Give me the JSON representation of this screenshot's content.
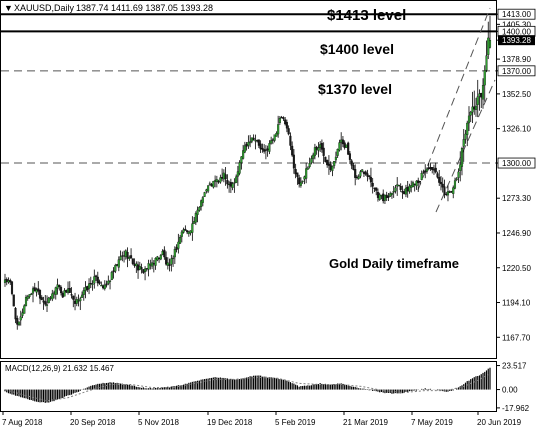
{
  "header": {
    "symbol_label": "XAUUSD,Daily",
    "ohlc_label": "1387.74 1411.69 1387.05 1393.28"
  },
  "annotations": {
    "level_1413": "$1413 level",
    "level_1400": "$1400 level",
    "level_1370": "$1370 level",
    "timeframe": "Gold Daily timeframe"
  },
  "colors": {
    "background": "#ffffff",
    "candle": "#000000",
    "bull_body": "#2f9e2f",
    "bear_body": "#1a1a1a",
    "level_line": "#000000",
    "dashed_line": "#555555",
    "macd_hist": "#000000",
    "signal_line": "#808080",
    "current_price_box": "#000000"
  },
  "chart_data": [
    {
      "type": "candlestick",
      "title": "XAUUSD,Daily",
      "subtitle": "1387.74 1411.69 1387.05 1393.28",
      "x": [
        "7 Aug 2018",
        "20 Sep 2018",
        "5 Nov 2018",
        "19 Dec 2018",
        "5 Feb 2019",
        "21 Mar 2019",
        "7 May 2019",
        "20 Jun 2019"
      ],
      "y_ticks": [
        1413.0,
        1405.3,
        1400.0,
        1393.28,
        1378.9,
        1370.0,
        1352.5,
        1326.1,
        1300.0,
        1273.3,
        1246.9,
        1220.5,
        1194.1,
        1167.7
      ],
      "ylim": [
        1153.5,
        1421.5
      ],
      "horizontal_levels": [
        {
          "value": 1413.0,
          "style": "solid",
          "label": "$1413 level"
        },
        {
          "value": 1400.0,
          "style": "solid",
          "label": "$1400 level"
        },
        {
          "value": 1370.0,
          "style": "dashed",
          "label": "$1370 level"
        },
        {
          "value": 1300.0,
          "style": "dashed"
        }
      ],
      "current_price": 1393.28,
      "close_path": [
        [
          0,
          1212
        ],
        [
          3,
          1208
        ],
        [
          5,
          1192
        ],
        [
          7,
          1175
        ],
        [
          9,
          1182
        ],
        [
          12,
          1198
        ],
        [
          15,
          1202
        ],
        [
          18,
          1205
        ],
        [
          21,
          1197
        ],
        [
          24,
          1193
        ],
        [
          27,
          1200
        ],
        [
          30,
          1208
        ],
        [
          33,
          1200
        ],
        [
          36,
          1205
        ],
        [
          38,
          1198
        ],
        [
          40,
          1192
        ],
        [
          42,
          1197
        ],
        [
          45,
          1202
        ],
        [
          48,
          1207
        ],
        [
          51,
          1212
        ],
        [
          54,
          1210
        ],
        [
          57,
          1205
        ],
        [
          60,
          1212
        ],
        [
          63,
          1220
        ],
        [
          66,
          1228
        ],
        [
          69,
          1232
        ],
        [
          72,
          1226
        ],
        [
          75,
          1222
        ],
        [
          78,
          1218
        ],
        [
          81,
          1220
        ],
        [
          84,
          1224
        ],
        [
          87,
          1228
        ],
        [
          90,
          1232
        ],
        [
          92,
          1224
        ],
        [
          94,
          1220
        ],
        [
          96,
          1230
        ],
        [
          98,
          1236
        ],
        [
          100,
          1244
        ],
        [
          102,
          1250
        ],
        [
          104,
          1247
        ],
        [
          107,
          1253
        ],
        [
          110,
          1263
        ],
        [
          113,
          1276
        ],
        [
          116,
          1282
        ],
        [
          119,
          1285
        ],
        [
          122,
          1287
        ],
        [
          125,
          1290
        ],
        [
          128,
          1284
        ],
        [
          131,
          1286
        ],
        [
          133,
          1294
        ],
        [
          136,
          1310
        ],
        [
          139,
          1317
        ],
        [
          142,
          1320
        ],
        [
          145,
          1313
        ],
        [
          148,
          1307
        ],
        [
          151,
          1314
        ],
        [
          154,
          1320
        ],
        [
          157,
          1335
        ],
        [
          160,
          1330
        ],
        [
          162,
          1320
        ],
        [
          164,
          1305
        ],
        [
          166,
          1292
        ],
        [
          168,
          1285
        ],
        [
          171,
          1290
        ],
        [
          174,
          1300
        ],
        [
          177,
          1311
        ],
        [
          180,
          1313
        ],
        [
          183,
          1303
        ],
        [
          186,
          1297
        ],
        [
          189,
          1306
        ],
        [
          192,
          1318
        ],
        [
          195,
          1312
        ],
        [
          198,
          1296
        ],
        [
          201,
          1288
        ],
        [
          204,
          1295
        ],
        [
          207,
          1292
        ],
        [
          210,
          1284
        ],
        [
          213,
          1276
        ],
        [
          216,
          1273
        ],
        [
          219,
          1275
        ],
        [
          222,
          1281
        ],
        [
          225,
          1284
        ],
        [
          228,
          1277
        ],
        [
          231,
          1282
        ],
        [
          234,
          1286
        ],
        [
          237,
          1288
        ],
        [
          240,
          1294
        ],
        [
          243,
          1297
        ],
        [
          246,
          1291
        ],
        [
          249,
          1282
        ],
        [
          252,
          1276
        ],
        [
          255,
          1280
        ],
        [
          258,
          1287
        ],
        [
          260,
          1300
        ],
        [
          262,
          1318
        ],
        [
          264,
          1331
        ],
        [
          266,
          1340
        ],
        [
          268,
          1342
        ],
        [
          270,
          1349
        ],
        [
          272,
          1352
        ],
        [
          273,
          1360
        ],
        [
          274,
          1369
        ],
        [
          275,
          1381
        ],
        [
          276,
          1395
        ],
        [
          277,
          1393.28
        ]
      ],
      "candle_count": 278,
      "first_bar_x_label_index": 0
    },
    {
      "type": "histogram",
      "title": "MACD(12,26,9) 21.632 15.467",
      "indicator": "MACD(12,26,9)",
      "values_label": "21.632 15.467",
      "macd_value": 21.632,
      "signal_value": 15.467,
      "y_ticks": [
        23.517,
        0.0,
        -17.962
      ],
      "ylim": [
        -21.0,
        27.0
      ],
      "macd_path": [
        [
          0,
          -2
        ],
        [
          6,
          -6
        ],
        [
          12,
          -9
        ],
        [
          18,
          -12
        ],
        [
          24,
          -13
        ],
        [
          30,
          -10
        ],
        [
          36,
          -6
        ],
        [
          42,
          -2
        ],
        [
          48,
          3
        ],
        [
          54,
          6
        ],
        [
          60,
          7
        ],
        [
          66,
          6
        ],
        [
          72,
          4
        ],
        [
          78,
          2
        ],
        [
          84,
          1
        ],
        [
          90,
          2
        ],
        [
          96,
          3
        ],
        [
          102,
          5
        ],
        [
          108,
          8
        ],
        [
          114,
          10
        ],
        [
          120,
          12
        ],
        [
          126,
          11
        ],
        [
          132,
          10
        ],
        [
          138,
          12
        ],
        [
          144,
          14
        ],
        [
          150,
          12
        ],
        [
          156,
          11
        ],
        [
          162,
          8
        ],
        [
          168,
          3
        ],
        [
          174,
          4
        ],
        [
          180,
          6
        ],
        [
          186,
          5
        ],
        [
          192,
          6
        ],
        [
          198,
          3
        ],
        [
          204,
          1
        ],
        [
          210,
          -1
        ],
        [
          216,
          -3
        ],
        [
          222,
          -4
        ],
        [
          228,
          -3
        ],
        [
          234,
          -1
        ],
        [
          240,
          1
        ],
        [
          246,
          0
        ],
        [
          252,
          -2
        ],
        [
          256,
          -1
        ],
        [
          260,
          3
        ],
        [
          264,
          8
        ],
        [
          268,
          12
        ],
        [
          272,
          15
        ],
        [
          275,
          19
        ],
        [
          277,
          21.632
        ]
      ],
      "signal_path": [
        [
          0,
          0
        ],
        [
          12,
          -6
        ],
        [
          24,
          -11
        ],
        [
          36,
          -8
        ],
        [
          48,
          -1
        ],
        [
          60,
          5
        ],
        [
          72,
          5
        ],
        [
          84,
          2
        ],
        [
          96,
          2
        ],
        [
          108,
          6
        ],
        [
          120,
          10
        ],
        [
          132,
          10
        ],
        [
          144,
          12
        ],
        [
          156,
          11
        ],
        [
          168,
          6
        ],
        [
          180,
          5
        ],
        [
          192,
          5
        ],
        [
          204,
          3
        ],
        [
          216,
          -1
        ],
        [
          228,
          -3
        ],
        [
          240,
          -1
        ],
        [
          252,
          -1
        ],
        [
          262,
          3
        ],
        [
          270,
          9
        ],
        [
          277,
          15.467
        ]
      ]
    }
  ]
}
